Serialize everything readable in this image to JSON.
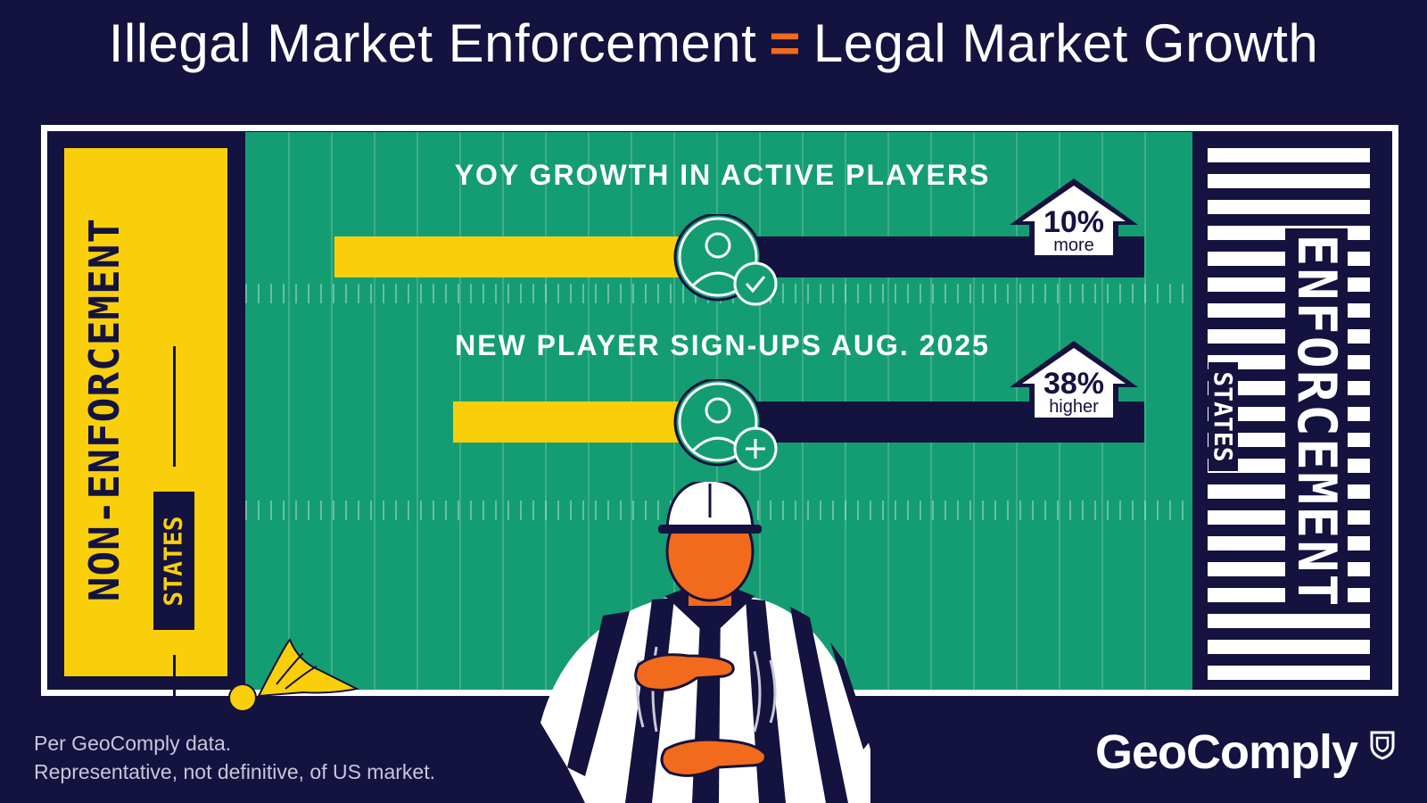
{
  "title": {
    "left": "Illegal Market Enforcement",
    "operator": "=",
    "right": "Legal Market Growth"
  },
  "left_endzone": {
    "label": "NON-ENFORCEMENT",
    "sublabel": "STATES"
  },
  "right_endzone": {
    "label": "ENFORCEMENT",
    "sublabel": "STATES"
  },
  "stats": [
    {
      "label": "YOY GROWTH IN ACTIVE PLAYERS",
      "badge_value": "10%",
      "badge_text": "more",
      "icon": "user-check-icon"
    },
    {
      "label": "NEW PLAYER SIGN-UPS AUG. 2025",
      "badge_value": "38%",
      "badge_text": "higher",
      "icon": "user-plus-icon"
    }
  ],
  "footnote": {
    "line1": "Per GeoComply data.",
    "line2": "Representative, not definitive, of US market."
  },
  "brand": {
    "name": "GeoComply",
    "icon": "shield-logo-icon"
  },
  "colors": {
    "background": "#14123f",
    "field": "#149d72",
    "yellow": "#f9cf0b",
    "accent_orange": "#f26a1b",
    "white": "#ffffff"
  }
}
